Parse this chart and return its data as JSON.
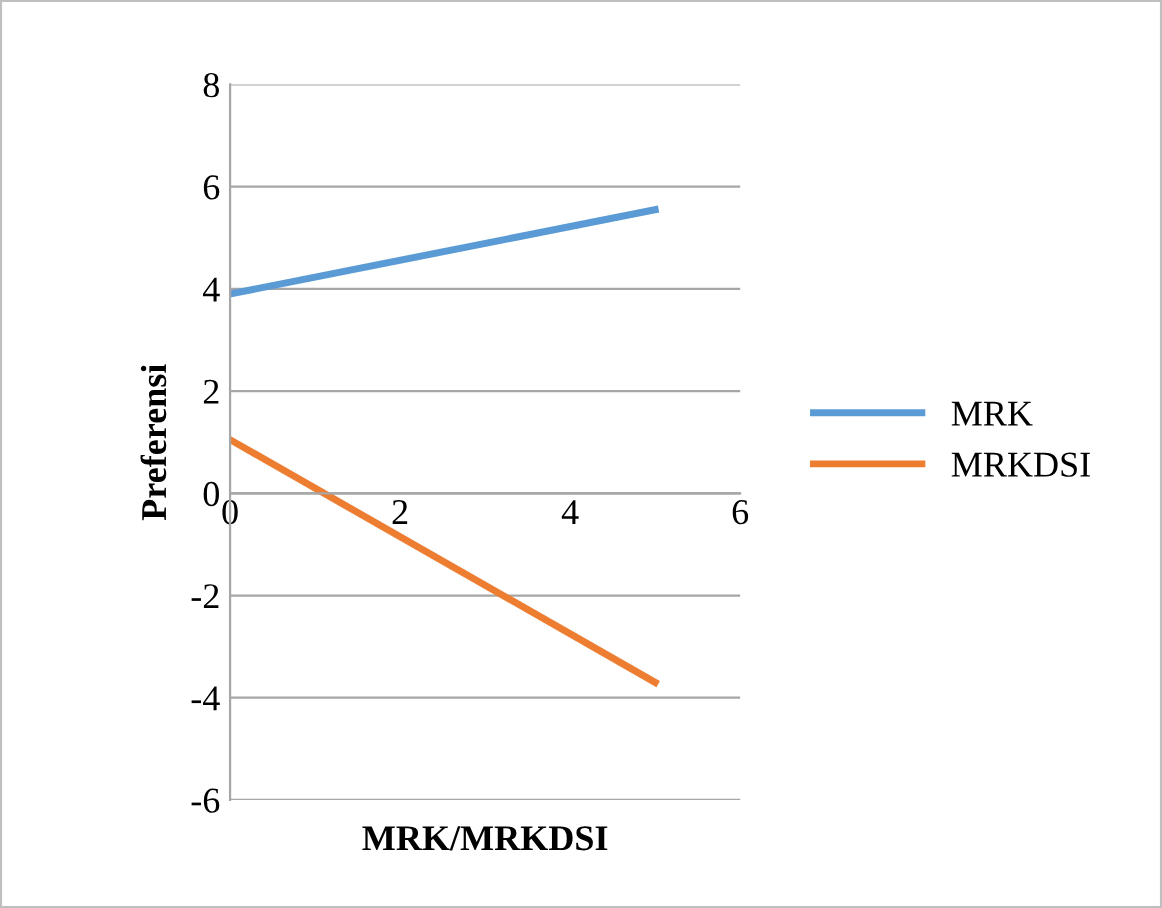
{
  "chart_data": {
    "type": "line",
    "xlabel": "MRK/MRKDSI",
    "ylabel": "Preferensi",
    "x": [
      0,
      5
    ],
    "series": [
      {
        "name": "MRK",
        "color": "#5b9bd5",
        "values": [
          3.9,
          5.55
        ]
      },
      {
        "name": "MRKDSI",
        "color": "#ed7d31",
        "values": [
          1.05,
          -3.7
        ]
      }
    ],
    "xlim": [
      0,
      6
    ],
    "xticks": [
      0,
      2,
      4,
      6
    ],
    "ylim": [
      -6,
      8
    ],
    "yticks": [
      -6,
      -4,
      -2,
      0,
      2,
      4,
      6,
      8
    ],
    "grid": "y",
    "legend": "right",
    "marker": "none",
    "line_style": "solid"
  }
}
